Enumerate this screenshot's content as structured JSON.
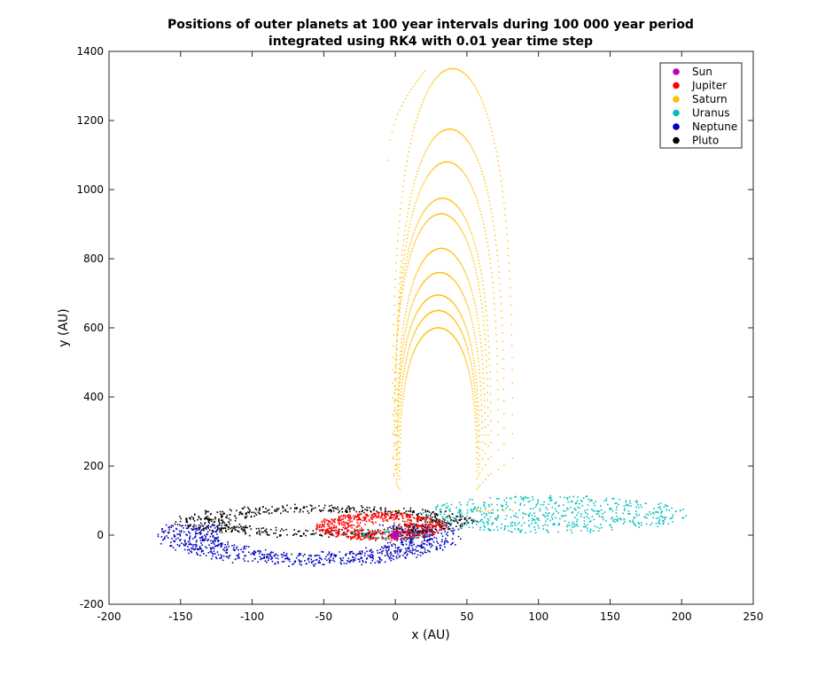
{
  "chart_data": {
    "type": "scatter",
    "title_lines": [
      "Positions of outer planets at 100 year intervals during 100 000 year period",
      "integrated using RK4 with 0.01 year time step"
    ],
    "xlabel": "x (AU)",
    "ylabel": "y (AU)",
    "xlim": [
      -200,
      250
    ],
    "ylim": [
      -200,
      1400
    ],
    "xticks": [
      -200,
      -150,
      -100,
      -50,
      0,
      50,
      100,
      150,
      200,
      250
    ],
    "yticks": [
      -200,
      0,
      200,
      400,
      600,
      800,
      1000,
      1200,
      1400
    ],
    "grid": false,
    "legend_position": "top-right",
    "series": [
      {
        "name": "Sun",
        "color": "#bf00bf",
        "marker": "big-dot",
        "model": {
          "kind": "point",
          "x": 0,
          "y": 0
        }
      },
      {
        "name": "Jupiter",
        "color": "#ff0000",
        "marker": "dot",
        "model": {
          "kind": "rings",
          "cx": -10,
          "cy": 25,
          "rx_range": [
            5,
            45
          ],
          "ry_range": [
            5,
            40
          ],
          "count": 650
        }
      },
      {
        "name": "Saturn",
        "color": "#ffbf00",
        "marker": "dot",
        "model": {
          "kind": "loops",
          "loops": [
            {
              "ax": 42,
              "cx": 40,
              "top": 1350,
              "outer": true
            },
            {
              "ax": 38,
              "cx": 38,
              "top": 1175
            },
            {
              "ax": 36,
              "cx": 36,
              "top": 1080
            },
            {
              "ax": 34,
              "cx": 33,
              "top": 975
            },
            {
              "ax": 33,
              "cx": 32,
              "top": 930
            },
            {
              "ax": 31,
              "cx": 32,
              "top": 830
            },
            {
              "ax": 30,
              "cx": 31,
              "top": 760
            },
            {
              "ax": 29,
              "cx": 30,
              "top": 695
            },
            {
              "ax": 28,
              "cx": 30,
              "top": 650
            },
            {
              "ax": 27,
              "cx": 30,
              "top": 600
            }
          ],
          "start_point": [
            -5,
            1085
          ]
        }
      },
      {
        "name": "Uranus",
        "color": "#00bfbf",
        "marker": "dot",
        "model": {
          "kind": "cloud",
          "cx": 110,
          "cy": 60,
          "rx": 95,
          "ry": 55,
          "count": 600,
          "inner_ring": {
            "cx": 0,
            "cy": 0,
            "rx": 22,
            "ry": 10,
            "count": 120
          }
        }
      },
      {
        "name": "Neptune",
        "color": "#0000bf",
        "marker": "dot",
        "model": {
          "kind": "ring",
          "cx": -60,
          "cy": 0,
          "rx": 105,
          "ry": 88,
          "y_min": -95,
          "y_max": 30,
          "count": 900
        }
      },
      {
        "name": "Pluto",
        "color": "#000000",
        "marker": "dot",
        "model": {
          "kind": "ring",
          "cx": -50,
          "cy": 40,
          "rx": 105,
          "ry": 45,
          "y_min": -10,
          "y_max": 110,
          "count": 700
        }
      }
    ]
  }
}
